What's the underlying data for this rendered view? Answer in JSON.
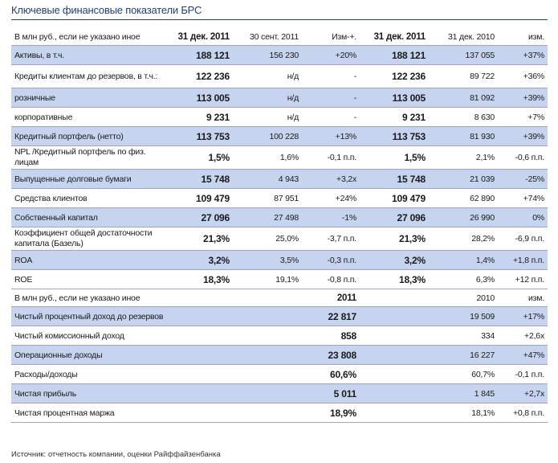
{
  "title": "Ключевые финансовые показатели БРС",
  "header1": [
    "В млн руб., если не указано иное",
    "31 дек. 2011",
    "30 сент. 2011",
    "Изм-+.",
    "31 дек. 2011",
    "31 дек. 2010",
    "изм."
  ],
  "rows1": [
    {
      "label": "Активы, в т.ч.",
      "v": [
        "188 121",
        "156 230",
        "+20%",
        "188 121",
        "137 055",
        "+37%"
      ],
      "shade": true,
      "tall": false
    },
    {
      "label": "Кредиты клиентам до резервов, в т.ч.:",
      "v": [
        "122 236",
        "н/д",
        "-",
        "122 236",
        "89 722",
        "+36%"
      ],
      "shade": false,
      "tall": true
    },
    {
      "label": "розничные",
      "v": [
        "113 005",
        "н/д",
        "-",
        "113 005",
        "81 092",
        "+39%"
      ],
      "shade": true,
      "tall": false
    },
    {
      "label": "корпоративные",
      "v": [
        "9 231",
        "н/д",
        "-",
        "9 231",
        "8 630",
        "+7%"
      ],
      "shade": false,
      "tall": false
    },
    {
      "label": "Кредитный портфель (нетто)",
      "v": [
        "113 753",
        "100 228",
        "+13%",
        "113 753",
        "81 930",
        "+39%"
      ],
      "shade": true,
      "tall": false
    },
    {
      "label": "NPL /Кредитный портфель по физ. лицам",
      "v": [
        "1,5%",
        "1,6%",
        "-0,1 п.п.",
        "1,5%",
        "2,1%",
        "-0,6 п.п."
      ],
      "shade": false,
      "tall": true
    },
    {
      "label": "Выпущенные долговые бумаги",
      "v": [
        "15 748",
        "4 943",
        "+3,2x",
        "15 748",
        "21 039",
        "-25%"
      ],
      "shade": true,
      "tall": false
    },
    {
      "label": "Средства клиентов",
      "v": [
        "109 479",
        "87 951",
        "+24%",
        "109 479",
        "62 890",
        "+74%"
      ],
      "shade": false,
      "tall": false
    },
    {
      "label": "Собственный капитал",
      "v": [
        "27 096",
        "27 498",
        "-1%",
        "27 096",
        "26 990",
        "0%"
      ],
      "shade": true,
      "tall": false
    },
    {
      "label": "Коэффициент общей достаточности капитала (Базель)",
      "v": [
        "21,3%",
        "25,0%",
        "-3,7 п.п.",
        "21,3%",
        "28,2%",
        "-6,9 п.п."
      ],
      "shade": false,
      "tall": true
    },
    {
      "label": "ROA",
      "v": [
        "3,2%",
        "3,5%",
        "-0,3 п.п.",
        "3,2%",
        "1,4%",
        "+1,8 п.п."
      ],
      "shade": true,
      "tall": false
    },
    {
      "label": "ROE",
      "v": [
        "18,3%",
        "19,1%",
        "-0,8 п.п.",
        "18,3%",
        "6,3%",
        "+12 п.п."
      ],
      "shade": false,
      "tall": false
    }
  ],
  "header2": [
    "В млн руб., если не указано иное",
    "2011",
    "2010",
    "изм."
  ],
  "rows2": [
    {
      "label": "Чистый процентный доход до резервов",
      "v": [
        "22 817",
        "19 509",
        "+17%"
      ],
      "shade": true
    },
    {
      "label": "Чистый комиссионный доход",
      "v": [
        "858",
        "334",
        "+2,6x"
      ],
      "shade": false
    },
    {
      "label": "Операционные доходы",
      "v": [
        "23 808",
        "16 227",
        "+47%"
      ],
      "shade": true
    },
    {
      "label": "Расходы/доходы",
      "v": [
        "60,6%",
        "60,7%",
        "-0,1 п.п."
      ],
      "shade": false
    },
    {
      "label": "Чистая прибыль",
      "v": [
        "5 011",
        "1 845",
        "+2,7x"
      ],
      "shade": true
    },
    {
      "label": "Чистая процентная маржа",
      "v": [
        "18,9%",
        "18,1%",
        "+0,8 п.п."
      ],
      "shade": false
    }
  ],
  "source": "Источник: отчетность компании, оценки Райффайзенбанка"
}
